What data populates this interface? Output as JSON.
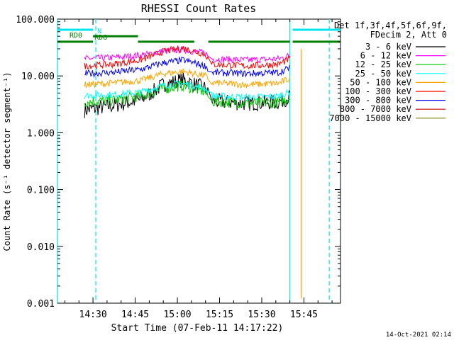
{
  "chart_data": {
    "type": "line",
    "title": "RHESSI Count Rates",
    "xlabel": "Start Time (07-Feb-11 14:17:22)",
    "ylabel": "Count Rate (s⁻¹ detector segment⁻¹)",
    "y_scale": "log",
    "ylim": [
      0.001,
      100
    ],
    "xlim": [
      "14:17:22",
      "15:58:00"
    ],
    "x_ticks": [
      "14:30",
      "14:45",
      "15:00",
      "15:15",
      "15:30",
      "15:45"
    ],
    "y_ticks": [
      "100.000",
      "10.000",
      "1.000",
      "0.100",
      "0.010",
      "0.001"
    ],
    "legend_placement": "right of plot",
    "legend_header": [
      "Det 1f,3f,4f,5f,6f,9f,",
      "FDecim 2, Att 0"
    ],
    "series": [
      {
        "name": "3 - 6 keV",
        "color": "#000000",
        "x": [
          "14:27",
          "14:37",
          "14:47",
          "14:55",
          "15:02",
          "15:10",
          "15:12",
          "15:25",
          "15:36",
          "15:40"
        ],
        "values": [
          2.5,
          3.0,
          3.8,
          7.0,
          8.5,
          6.0,
          3.6,
          3.3,
          3.5,
          4.3
        ]
      },
      {
        "name": "6 - 12 keV",
        "color": "#ff00ff",
        "x": [
          "14:27",
          "14:37",
          "14:47",
          "14:55",
          "15:02",
          "15:10",
          "15:12",
          "15:25",
          "15:36",
          "15:40"
        ],
        "values": [
          20,
          21,
          23,
          27,
          29,
          25,
          20,
          19,
          20,
          23
        ]
      },
      {
        "name": "12 - 25 keV",
        "color": "#00cc00",
        "x": [
          "14:27",
          "14:37",
          "14:47",
          "14:55",
          "15:02",
          "15:10",
          "15:12",
          "15:25",
          "15:36",
          "15:40"
        ],
        "values": [
          3.5,
          3.7,
          4.4,
          6.0,
          6.8,
          5.2,
          3.6,
          3.3,
          3.4,
          4.2
        ]
      },
      {
        "name": "25 - 50 keV",
        "color": "#00ffff",
        "x": [
          "14:27",
          "14:37",
          "14:47",
          "14:55",
          "15:02",
          "15:10",
          "15:12",
          "15:25",
          "15:36",
          "15:40"
        ],
        "values": [
          4.5,
          4.7,
          5.2,
          6.8,
          7.4,
          6.0,
          4.5,
          4.2,
          4.4,
          5.2
        ]
      },
      {
        "name": "50 - 100 keV",
        "color": "#ffa500",
        "x": [
          "14:27",
          "14:37",
          "14:47",
          "14:55",
          "15:02",
          "15:10",
          "15:12",
          "15:25",
          "15:36",
          "15:40"
        ],
        "values": [
          7.0,
          7.5,
          8.3,
          11,
          12,
          10,
          7.6,
          7.0,
          7.4,
          9.0
        ]
      },
      {
        "name": "100 - 300 keV",
        "color": "#ff0000",
        "x": [
          "14:27",
          "14:37",
          "14:47",
          "14:55",
          "15:02",
          "15:10",
          "15:12",
          "15:25",
          "15:36",
          "15:40"
        ],
        "values": [
          15,
          16,
          19,
          27,
          31,
          24,
          16,
          15,
          16,
          20
        ]
      },
      {
        "name": "300 - 800 keV",
        "color": "#0000ff",
        "x": [
          "14:27",
          "14:37",
          "14:47",
          "14:55",
          "15:02",
          "15:10",
          "15:12",
          "15:25",
          "15:36",
          "15:40"
        ],
        "values": [
          11,
          11.5,
          13,
          17,
          19,
          15,
          11.5,
          11,
          11.5,
          14
        ]
      },
      {
        "name": "800 - 7000 keV",
        "color": "#cc0000",
        "x": [],
        "values": []
      },
      {
        "name": "7000 - 15000 keV",
        "color": "#808000",
        "x": [],
        "values": []
      }
    ],
    "flags": [
      {
        "label": "N",
        "color": "#00e5ee",
        "level": 65,
        "segments": [
          [
            "14:17:22",
            "14:30"
          ],
          [
            "15:41",
            "15:58"
          ]
        ]
      },
      {
        "label": "RD0",
        "color": "#008000",
        "level": 50,
        "segments": [
          [
            "14:30",
            "14:46"
          ]
        ]
      },
      {
        "label": "RD6",
        "color": "#008000",
        "level": 40,
        "segments": [
          [
            "14:17:22",
            "14:30"
          ],
          [
            "14:46",
            "15:06"
          ],
          [
            "15:11",
            "15:40"
          ],
          [
            "15:41",
            "15:58"
          ]
        ]
      }
    ],
    "vertical_lines": [
      {
        "x": "14:17:22",
        "color": "#00e5ee",
        "style": "solid"
      },
      {
        "x": "14:31",
        "color": "#00e5ee",
        "style": "dashed"
      },
      {
        "x": "15:40",
        "color": "#00e5ee",
        "style": "solid"
      },
      {
        "x": "15:54",
        "color": "#00e5ee",
        "style": "dashed"
      },
      {
        "x": "15:44",
        "color": "#ffa500",
        "style": "solid"
      }
    ],
    "background_color": "#ffffff"
  },
  "footer_timestamp": "14-Oct-2021 02:14"
}
